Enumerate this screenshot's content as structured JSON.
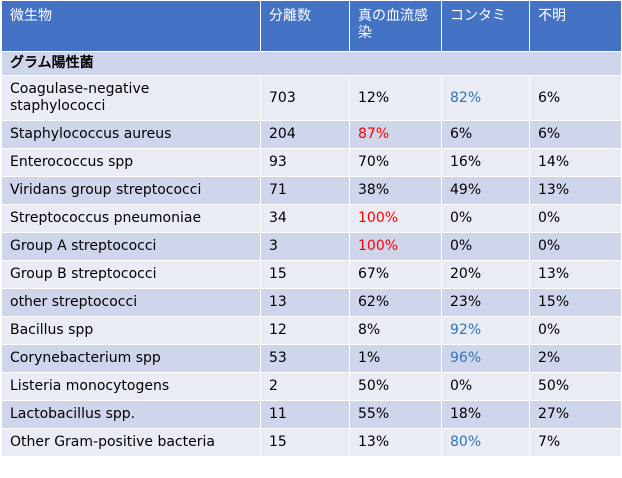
{
  "colors": {
    "header_bg": "#4472c4",
    "row_dark": "#cfd5ea",
    "row_light": "#e9ebf5",
    "highlight_red": "#ff0000",
    "highlight_blue": "#2e75b6"
  },
  "headers": [
    "微生物",
    "分離数",
    "真の血流感染",
    "コンタミ",
    "不明"
  ],
  "group_label": "グラム陽性菌",
  "rows": [
    {
      "organism": "Coagulase-negative staphylococci",
      "isolates": "703",
      "true_bsi": "12%",
      "contaminant": "82%",
      "unknown": "6%",
      "hl_true": "",
      "hl_cont": "blue"
    },
    {
      "organism": "Staphylococcus aureus",
      "isolates": "204",
      "true_bsi": "87%",
      "contaminant": "6%",
      "unknown": "6%",
      "hl_true": "red",
      "hl_cont": ""
    },
    {
      "organism": "Enterococcus spp",
      "isolates": "93",
      "true_bsi": "70%",
      "contaminant": "16%",
      "unknown": "14%",
      "hl_true": "",
      "hl_cont": ""
    },
    {
      "organism": "Viridans group streptococci",
      "isolates": "71",
      "true_bsi": "38%",
      "contaminant": "49%",
      "unknown": "13%",
      "hl_true": "",
      "hl_cont": ""
    },
    {
      "organism": "Streptococcus pneumoniae",
      "isolates": "34",
      "true_bsi": "100%",
      "contaminant": "0%",
      "unknown": "0%",
      "hl_true": "red",
      "hl_cont": ""
    },
    {
      "organism": "Group A streptococci",
      "isolates": "3",
      "true_bsi": "100%",
      "contaminant": "0%",
      "unknown": "0%",
      "hl_true": "red",
      "hl_cont": ""
    },
    {
      "organism": "Group B streptococci",
      "isolates": "15",
      "true_bsi": "67%",
      "contaminant": "20%",
      "unknown": "13%",
      "hl_true": "",
      "hl_cont": ""
    },
    {
      "organism": "other streptococci",
      "isolates": "13",
      "true_bsi": "62%",
      "contaminant": "23%",
      "unknown": "15%",
      "hl_true": "",
      "hl_cont": ""
    },
    {
      "organism": "Bacillus spp",
      "isolates": "12",
      "true_bsi": "8%",
      "contaminant": "92%",
      "unknown": "0%",
      "hl_true": "",
      "hl_cont": "blue"
    },
    {
      "organism": "Corynebacterium spp",
      "isolates": "53",
      "true_bsi": "1%",
      "contaminant": "96%",
      "unknown": "2%",
      "hl_true": "",
      "hl_cont": "blue"
    },
    {
      "organism": "Listeria monocytogens",
      "isolates": "2",
      "true_bsi": "50%",
      "contaminant": "0%",
      "unknown": "50%",
      "hl_true": "",
      "hl_cont": ""
    },
    {
      "organism": "Lactobacillus spp.",
      "isolates": "11",
      "true_bsi": "55%",
      "contaminant": "18%",
      "unknown": "27%",
      "hl_true": "",
      "hl_cont": ""
    },
    {
      "organism": "Other Gram-positive bacteria",
      "isolates": "15",
      "true_bsi": "13%",
      "contaminant": "80%",
      "unknown": "7%",
      "hl_true": "",
      "hl_cont": "blue"
    }
  ]
}
